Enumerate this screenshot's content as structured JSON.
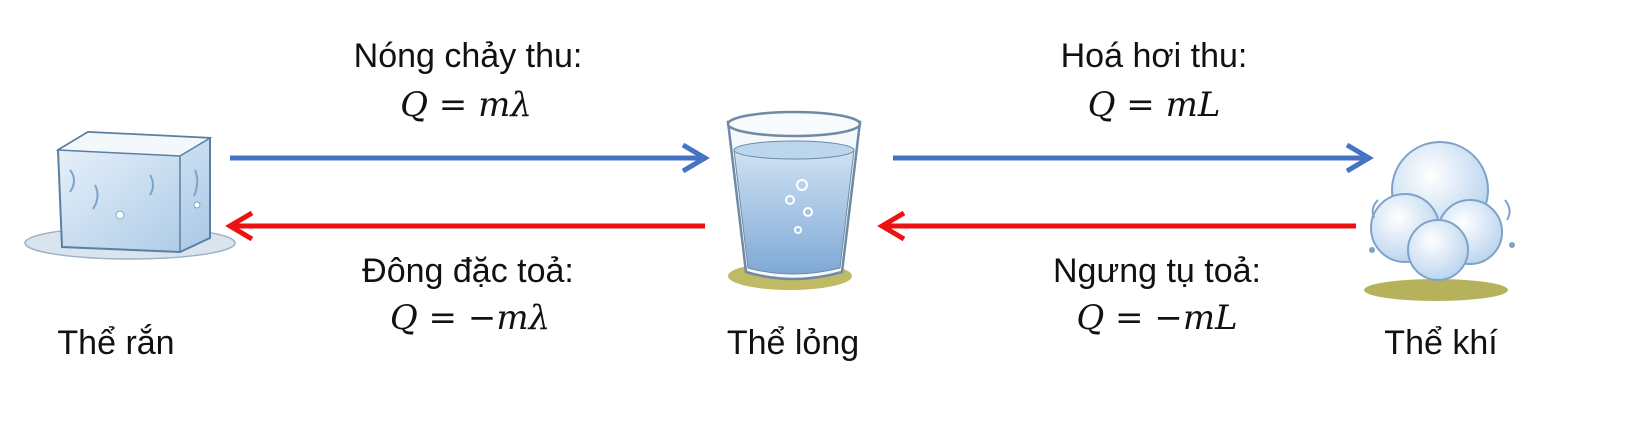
{
  "transitions": {
    "melting": {
      "label": "Nóng chảy thu:",
      "formula": "Q = mλ"
    },
    "vaporization": {
      "label": "Hoá hơi thu:",
      "formula": "Q = mL"
    },
    "solidification": {
      "label": "Đông đặc toả:",
      "formula": "Q = −mλ"
    },
    "condensation": {
      "label": "Ngưng tụ toả:",
      "formula": "Q = −mL"
    }
  },
  "states": {
    "solid": "Thể rắn",
    "liquid": "Thể lỏng",
    "gas": "Thể khí"
  },
  "colors": {
    "absorb_arrow": "#4472C4",
    "release_arrow": "#EE1111"
  }
}
